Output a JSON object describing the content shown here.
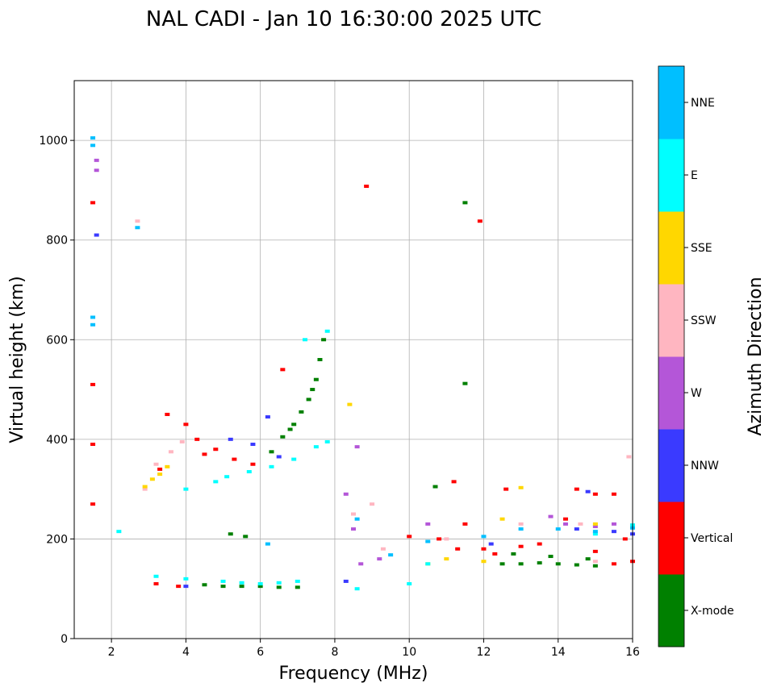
{
  "chart_data": {
    "type": "scatter",
    "title": "NAL CADI - Jan 10 16:30:00 2025 UTC",
    "xlabel": "Frequency (MHz)",
    "ylabel": "Virtual height (km)",
    "xlim": [
      1,
      16
    ],
    "ylim": [
      0,
      1120
    ],
    "xticks": [
      2,
      4,
      6,
      8,
      10,
      12,
      14,
      16
    ],
    "yticks": [
      0,
      200,
      400,
      600,
      800,
      1000
    ],
    "grid": true,
    "colorbar": {
      "label": "Azimuth Direction",
      "categories": [
        "X-mode",
        "Vertical",
        "NNW",
        "W",
        "SSW",
        "SSE",
        "E",
        "NNE"
      ],
      "colors": [
        "#008000",
        "#ff0000",
        "#3a3aff",
        "#b456d8",
        "#ffb6c1",
        "#ffd700",
        "#00ffff",
        "#00bfff"
      ]
    },
    "series": [
      {
        "name": "X-mode",
        "points": [
          [
            5.0,
            105
          ],
          [
            5.5,
            105
          ],
          [
            6.0,
            105
          ],
          [
            6.5,
            103
          ],
          [
            7.0,
            103
          ],
          [
            4.5,
            108
          ],
          [
            6.3,
            375
          ],
          [
            6.6,
            405
          ],
          [
            6.9,
            430
          ],
          [
            7.1,
            455
          ],
          [
            7.3,
            480
          ],
          [
            7.5,
            520
          ],
          [
            7.6,
            560
          ],
          [
            7.7,
            600
          ],
          [
            7.4,
            500
          ],
          [
            6.8,
            420
          ],
          [
            5.2,
            210
          ],
          [
            5.6,
            205
          ],
          [
            12.5,
            150
          ],
          [
            13.0,
            150
          ],
          [
            13.5,
            152
          ],
          [
            14.0,
            150
          ],
          [
            14.5,
            148
          ],
          [
            15.0,
            146
          ],
          [
            12.8,
            170
          ],
          [
            13.8,
            165
          ],
          [
            14.8,
            160
          ],
          [
            11.5,
            875
          ],
          [
            11.5,
            512
          ],
          [
            10.7,
            305
          ]
        ]
      },
      {
        "name": "Vertical",
        "points": [
          [
            3.5,
            450
          ],
          [
            4.0,
            430
          ],
          [
            4.3,
            400
          ],
          [
            4.8,
            380
          ],
          [
            5.3,
            360
          ],
          [
            5.8,
            350
          ],
          [
            4.5,
            370
          ],
          [
            3.3,
            340
          ],
          [
            6.6,
            540
          ],
          [
            8.85,
            908
          ],
          [
            11.9,
            838
          ],
          [
            10.0,
            205
          ],
          [
            10.8,
            200
          ],
          [
            11.3,
            180
          ],
          [
            12.3,
            170
          ],
          [
            13.0,
            185
          ],
          [
            13.5,
            190
          ],
          [
            14.5,
            300
          ],
          [
            15.0,
            290
          ],
          [
            15.5,
            290
          ],
          [
            15.5,
            150
          ],
          [
            16.0,
            155
          ],
          [
            12.6,
            300
          ],
          [
            14.2,
            240
          ],
          [
            15.8,
            200
          ],
          [
            1.5,
            875
          ],
          [
            1.5,
            510
          ],
          [
            1.5,
            390
          ],
          [
            1.5,
            270
          ],
          [
            3.2,
            110
          ],
          [
            3.8,
            105
          ],
          [
            11.2,
            315
          ],
          [
            11.5,
            230
          ],
          [
            12.0,
            180
          ],
          [
            15.0,
            175
          ]
        ]
      },
      {
        "name": "NNW",
        "points": [
          [
            5.2,
            400
          ],
          [
            5.8,
            390
          ],
          [
            6.5,
            365
          ],
          [
            1.6,
            810
          ],
          [
            4.0,
            105
          ],
          [
            8.3,
            115
          ],
          [
            14.5,
            220
          ],
          [
            15.5,
            215
          ],
          [
            16.0,
            210
          ],
          [
            6.2,
            445
          ],
          [
            14.8,
            295
          ],
          [
            12.2,
            190
          ]
        ]
      },
      {
        "name": "W",
        "points": [
          [
            1.6,
            940
          ],
          [
            1.6,
            960
          ],
          [
            8.6,
            385
          ],
          [
            8.3,
            290
          ],
          [
            8.7,
            150
          ],
          [
            9.2,
            160
          ],
          [
            13.8,
            245
          ],
          [
            14.2,
            230
          ],
          [
            15.0,
            225
          ],
          [
            15.5,
            230
          ],
          [
            10.5,
            230
          ],
          [
            8.5,
            220
          ]
        ]
      },
      {
        "name": "SSW",
        "points": [
          [
            2.7,
            838
          ],
          [
            3.2,
            350
          ],
          [
            3.6,
            375
          ],
          [
            3.9,
            395
          ],
          [
            2.9,
            300
          ],
          [
            8.5,
            250
          ],
          [
            9.0,
            270
          ],
          [
            9.3,
            180
          ],
          [
            14.6,
            230
          ],
          [
            15.9,
            365
          ],
          [
            15.0,
            155
          ],
          [
            13.0,
            230
          ],
          [
            11.0,
            200
          ]
        ]
      },
      {
        "name": "SSE",
        "points": [
          [
            2.9,
            305
          ],
          [
            3.1,
            320
          ],
          [
            3.3,
            330
          ],
          [
            3.5,
            345
          ],
          [
            8.4,
            470
          ],
          [
            10.5,
            150
          ],
          [
            11.0,
            160
          ],
          [
            12.0,
            155
          ],
          [
            13.0,
            303
          ],
          [
            15.0,
            230
          ],
          [
            16.0,
            225
          ],
          [
            12.5,
            240
          ]
        ]
      },
      {
        "name": "E",
        "points": [
          [
            5.1,
            325
          ],
          [
            5.7,
            335
          ],
          [
            6.3,
            345
          ],
          [
            6.9,
            360
          ],
          [
            7.5,
            385
          ],
          [
            4.8,
            315
          ],
          [
            8.6,
            100
          ],
          [
            7.0,
            115
          ],
          [
            6.5,
            112
          ],
          [
            6.0,
            110
          ],
          [
            5.5,
            112
          ],
          [
            5.0,
            115
          ],
          [
            4.0,
            120
          ],
          [
            3.2,
            125
          ],
          [
            7.2,
            600
          ],
          [
            7.8,
            395
          ],
          [
            10.0,
            110
          ],
          [
            15.0,
            210
          ],
          [
            16.0,
            228
          ],
          [
            10.5,
            150
          ],
          [
            2.2,
            215
          ],
          [
            4.0,
            300
          ],
          [
            7.8,
            617
          ]
        ]
      },
      {
        "name": "NNE",
        "points": [
          [
            1.5,
            1005
          ],
          [
            1.5,
            990
          ],
          [
            1.5,
            645
          ],
          [
            1.5,
            630
          ],
          [
            2.7,
            825
          ],
          [
            13.0,
            220
          ],
          [
            14.0,
            220
          ],
          [
            15.0,
            215
          ],
          [
            16.0,
            222
          ],
          [
            9.5,
            168
          ],
          [
            10.5,
            195
          ],
          [
            6.2,
            190
          ],
          [
            8.6,
            240
          ],
          [
            12.0,
            205
          ]
        ]
      }
    ]
  }
}
